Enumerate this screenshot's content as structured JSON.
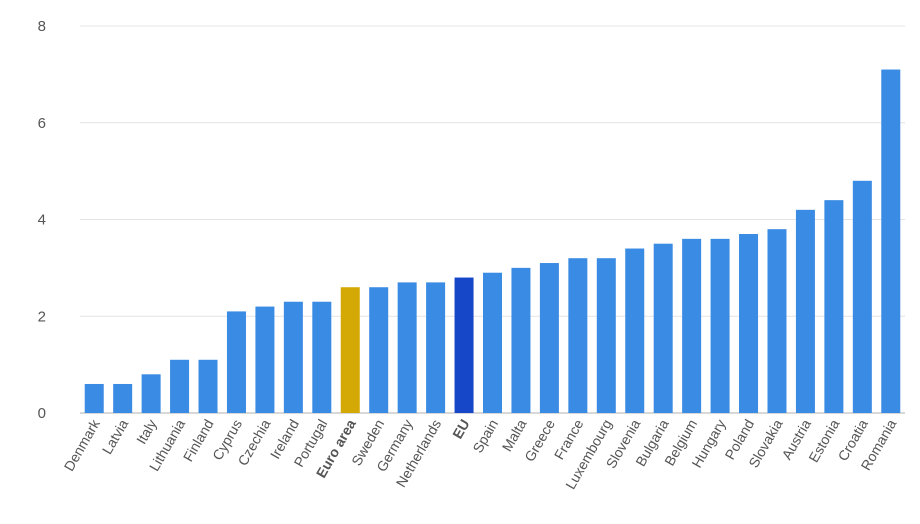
{
  "chart_data": {
    "type": "bar",
    "title": "",
    "xlabel": "",
    "ylabel": "",
    "ylim": [
      0,
      8
    ],
    "yticks": [
      0,
      2,
      4,
      6,
      8
    ],
    "grid": true,
    "categories": [
      "Denmark",
      "Latvia",
      "Italy",
      "Lithuania",
      "Finland",
      "Cyprus",
      "Czechia",
      "Ireland",
      "Portugal",
      "Euro area",
      "Sweden",
      "Germany",
      "Netherlands",
      "EU",
      "Spain",
      "Malta",
      "Greece",
      "France",
      "Luxembourg",
      "Slovenia",
      "Bulgaria",
      "Belgium",
      "Hungary",
      "Poland",
      "Slovakia",
      "Austria",
      "Estonia",
      "Croatia",
      "Romania"
    ],
    "values": [
      0.6,
      0.6,
      0.8,
      1.1,
      1.1,
      2.1,
      2.2,
      2.3,
      2.3,
      2.6,
      2.6,
      2.7,
      2.7,
      2.8,
      2.9,
      3.0,
      3.1,
      3.2,
      3.2,
      3.4,
      3.5,
      3.6,
      3.6,
      3.7,
      3.8,
      4.2,
      4.4,
      4.8,
      7.1
    ],
    "highlight": {
      "Euro area": "euro_area",
      "EU": "eu"
    },
    "bold_categories": [
      "Euro area",
      "EU"
    ]
  },
  "colors": {
    "bar": "#3a8be3",
    "euro_area": "#d4a805",
    "eu": "#1547c8"
  }
}
